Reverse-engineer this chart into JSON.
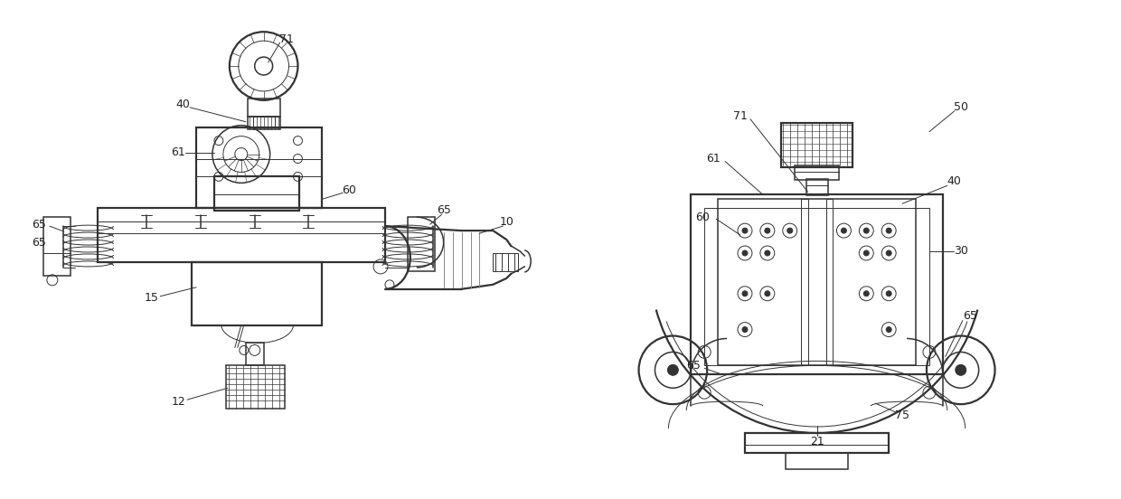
{
  "bg_color": "#ffffff",
  "line_color": "#333333",
  "lw_thin": 0.7,
  "lw_med": 1.1,
  "lw_thick": 1.6,
  "fig_width": 12.4,
  "fig_height": 5.52,
  "dpi": 100
}
